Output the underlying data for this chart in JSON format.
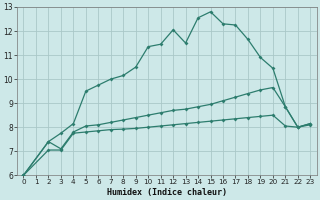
{
  "bg_color": "#cde8e8",
  "grid_color": "#aac8c8",
  "line_color": "#2d7d6e",
  "xlabel": "Humidex (Indice chaleur)",
  "xlim": [
    -0.5,
    23.5
  ],
  "ylim": [
    6,
    13
  ],
  "xticks": [
    0,
    1,
    2,
    3,
    4,
    5,
    6,
    7,
    8,
    9,
    10,
    11,
    12,
    13,
    14,
    15,
    16,
    17,
    18,
    19,
    20,
    21,
    22,
    23
  ],
  "yticks": [
    6,
    7,
    8,
    9,
    10,
    11,
    12,
    13
  ],
  "line1_x": [
    0,
    2,
    3,
    4,
    5,
    6,
    7,
    8,
    9,
    10,
    11,
    12,
    13,
    14,
    15,
    16,
    17,
    18,
    19,
    20,
    21,
    22,
    23
  ],
  "line1_y": [
    6.0,
    7.4,
    7.75,
    8.15,
    9.5,
    9.75,
    10.0,
    10.15,
    10.5,
    11.35,
    11.45,
    12.05,
    11.5,
    12.55,
    12.8,
    12.3,
    12.25,
    11.65,
    10.9,
    10.45,
    8.85,
    8.0,
    8.15
  ],
  "line2_x": [
    0,
    2,
    3,
    4,
    5,
    6,
    7,
    8,
    9,
    10,
    11,
    12,
    13,
    14,
    15,
    16,
    17,
    18,
    19,
    20,
    21,
    22,
    23
  ],
  "line2_y": [
    6.0,
    7.4,
    7.1,
    7.8,
    8.05,
    8.1,
    8.2,
    8.3,
    8.4,
    8.5,
    8.6,
    8.7,
    8.75,
    8.85,
    8.95,
    9.1,
    9.25,
    9.4,
    9.55,
    9.65,
    8.85,
    8.0,
    8.15
  ],
  "line3_x": [
    0,
    2,
    3,
    4,
    5,
    6,
    7,
    8,
    9,
    10,
    11,
    12,
    13,
    14,
    15,
    16,
    17,
    18,
    19,
    20,
    21,
    22,
    23
  ],
  "line3_y": [
    6.0,
    7.05,
    7.05,
    7.75,
    7.8,
    7.85,
    7.9,
    7.92,
    7.95,
    8.0,
    8.05,
    8.1,
    8.15,
    8.2,
    8.25,
    8.3,
    8.35,
    8.4,
    8.45,
    8.5,
    8.05,
    8.0,
    8.1
  ]
}
